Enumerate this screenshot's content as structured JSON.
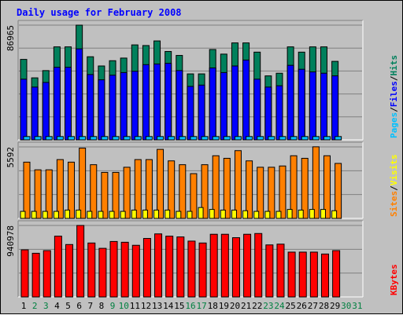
{
  "chart_data": {
    "type": "bar",
    "title": "Daily usage for February 2008",
    "colors": {
      "hits": "#00805c",
      "files": "#0000ff",
      "pages": "#00c0ff",
      "visits": "#ffff00",
      "sites": "#ff8000",
      "kbytes": "#ff0000",
      "background": "#c0c0c0",
      "weekend_label": "#008040",
      "weekday_label": "#000000",
      "title": "#0000ff",
      "slash": "#000000"
    },
    "days": [
      "1",
      "2",
      "3",
      "4",
      "5",
      "6",
      "7",
      "8",
      "9",
      "10",
      "11",
      "12",
      "13",
      "14",
      "15",
      "16",
      "17",
      "18",
      "19",
      "20",
      "21",
      "22",
      "23",
      "24",
      "25",
      "26",
      "27",
      "28",
      "29",
      "30",
      "31"
    ],
    "weekend_days": [
      2,
      3,
      9,
      10,
      16,
      17,
      23,
      24,
      30,
      31
    ],
    "panels": [
      {
        "id": "hits-files-pages",
        "ytick_label": "86965",
        "ymax": 86965,
        "legend": [
          {
            "label": "Pages",
            "color": "#00c0ff"
          },
          {
            "label": "Files",
            "color": "#0000ff"
          },
          {
            "label": "Hits",
            "color": "#00805c"
          }
        ],
        "series": [
          {
            "name": "Hits",
            "values": [
              61000,
              47000,
              52500,
              70500,
              70500,
              86965,
              63000,
              56000,
              60000,
              62000,
              72000,
              71500,
              75000,
              67000,
              64000,
              50000,
              50000,
              68500,
              65000,
              73500,
              73500,
              66500,
              48500,
              50500,
              70500,
              66500,
              70500,
              70500,
              59500,
              0,
              0
            ]
          },
          {
            "name": "Files",
            "values": [
              46000,
              40000,
              43500,
              55000,
              55000,
              69000,
              49500,
              45500,
              49000,
              51000,
              52000,
              57000,
              57500,
              58000,
              52500,
              40500,
              41500,
              54500,
              51000,
              56000,
              60500,
              46000,
              40000,
              41000,
              56500,
              53500,
              51500,
              50500,
              48500,
              0,
              0
            ]
          },
          {
            "name": "Pages",
            "values": [
              2500,
              2500,
              2500,
              2500,
              2500,
              2500,
              2500,
              2500,
              2500,
              2500,
              2500,
              2500,
              2500,
              2500,
              2500,
              2500,
              2500,
              2500,
              2500,
              2500,
              2500,
              2500,
              2500,
              2500,
              2500,
              2500,
              2500,
              2500,
              2500,
              0,
              0
            ]
          }
        ]
      },
      {
        "id": "sites-visits",
        "ytick_label": "5592",
        "ymax": 5592,
        "legend": [
          {
            "label": "Sites",
            "color": "#ff8000"
          },
          {
            "label": "Visits",
            "color": "#ffff00"
          }
        ],
        "series": [
          {
            "name": "Sites",
            "values": [
              4400,
              3800,
              3800,
              4600,
              4400,
              5500,
              4200,
              3600,
              3600,
              4000,
              4600,
              4600,
              5400,
              4500,
              4200,
              3500,
              4200,
              4900,
              4700,
              5300,
              4500,
              4000,
              4000,
              4100,
              4900,
              4700,
              5600,
              4900,
              4300,
              0,
              0
            ]
          },
          {
            "name": "Visits",
            "values": [
              550,
              550,
              550,
              550,
              650,
              650,
              550,
              550,
              550,
              550,
              650,
              650,
              650,
              650,
              550,
              550,
              850,
              700,
              650,
              650,
              600,
              550,
              550,
              550,
              700,
              650,
              700,
              700,
              600,
              0,
              0
            ]
          }
        ]
      },
      {
        "id": "kbytes",
        "ytick_label": "940978",
        "ymax": 940978,
        "legend": [
          {
            "label": "KBytes",
            "color": "#ff0000"
          }
        ],
        "series": [
          {
            "name": "KBytes",
            "values": [
              620000,
              575000,
              610000,
              800000,
              690000,
              940978,
              710000,
              640000,
              730000,
              720000,
              680000,
              770000,
              830000,
              800000,
              790000,
              735000,
              710000,
              825000,
              825000,
              780000,
              825000,
              835000,
              685000,
              695000,
              590000,
              590000,
              590000,
              565000,
              610000,
              0,
              0
            ]
          }
        ]
      }
    ]
  }
}
